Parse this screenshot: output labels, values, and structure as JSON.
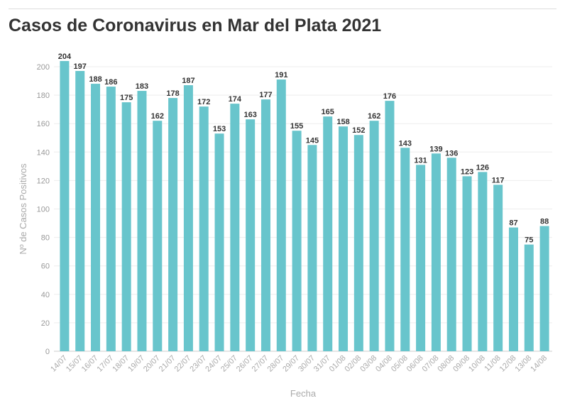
{
  "chart_data": {
    "type": "bar",
    "title": "Casos de Coronavirus en Mar del Plata 2021",
    "xlabel": "Fecha",
    "ylabel": "Nº de Casos Positivos",
    "ylim": [
      0,
      200
    ],
    "yticks": [
      0,
      20,
      40,
      60,
      80,
      100,
      120,
      140,
      160,
      180,
      200
    ],
    "grid": true,
    "bar_color": "#68c5cc",
    "categories": [
      "14/07",
      "15/07",
      "16/07",
      "17/07",
      "18/07",
      "19/07",
      "20/07",
      "21/07",
      "22/07",
      "23/07",
      "24/07",
      "25/07",
      "26/07",
      "27/07",
      "28/07",
      "29/07",
      "30/07",
      "31/07",
      "01/08",
      "02/08",
      "03/08",
      "04/08",
      "05/08",
      "06/08",
      "07/08",
      "08/08",
      "09/08",
      "10/08",
      "11/08",
      "12/08",
      "13/08",
      "14/08"
    ],
    "values": [
      204,
      197,
      188,
      186,
      175,
      183,
      162,
      178,
      187,
      172,
      153,
      174,
      163,
      177,
      191,
      155,
      145,
      165,
      158,
      152,
      162,
      176,
      143,
      131,
      139,
      136,
      123,
      126,
      117,
      87,
      75,
      88
    ]
  }
}
